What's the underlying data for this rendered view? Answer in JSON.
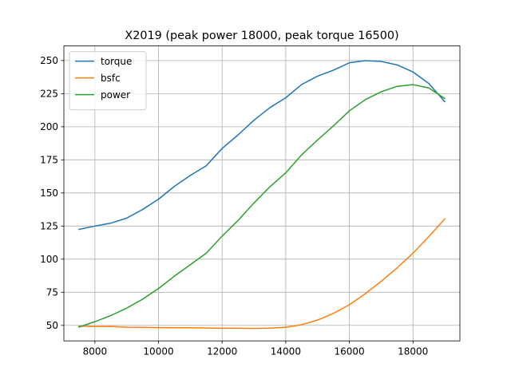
{
  "chart_data": {
    "type": "line",
    "title": "X2019 (peak power 18000, peak torque 16500)",
    "xlabel": "",
    "ylabel": "",
    "xlim": [
      7025,
      19475
    ],
    "ylim": [
      38.3,
      261.0
    ],
    "xticks": [
      8000,
      10000,
      12000,
      14000,
      16000,
      18000
    ],
    "yticks": [
      50,
      75,
      100,
      125,
      150,
      175,
      200,
      225,
      250
    ],
    "grid": true,
    "legend_position": "top-left",
    "series": [
      {
        "name": "torque",
        "color": "#1f77b4",
        "x": [
          7500,
          8000,
          8500,
          9000,
          9500,
          10000,
          10500,
          11000,
          11500,
          12000,
          12500,
          13000,
          13500,
          14000,
          14500,
          15000,
          15500,
          16000,
          16500,
          17000,
          17500,
          18000,
          18500,
          19000
        ],
        "y": [
          122.5,
          125,
          127.2,
          131,
          137.5,
          145.3,
          155,
          163.2,
          170.5,
          183.6,
          193.8,
          204.9,
          214.4,
          221.9,
          231.9,
          238.2,
          242.7,
          248.3,
          249.9,
          249.3,
          246.7,
          241.4,
          232.6,
          218.9
        ]
      },
      {
        "name": "bsfc",
        "color": "#ff7f0e",
        "x": [
          7500,
          8000,
          8500,
          9000,
          9500,
          10000,
          10500,
          11000,
          11500,
          12000,
          12500,
          13000,
          13500,
          14000,
          14500,
          15000,
          15500,
          16000,
          16500,
          17000,
          17500,
          18000,
          18500,
          19000
        ],
        "y": [
          49.4,
          49.1,
          49.2,
          48.6,
          48.5,
          48.3,
          48.2,
          48.2,
          48,
          47.8,
          47.8,
          47.7,
          47.9,
          48.6,
          50.5,
          54,
          59.1,
          65.6,
          73.9,
          83.3,
          93.4,
          104.5,
          117.1,
          130.4
        ]
      },
      {
        "name": "power",
        "color": "#2ca02c",
        "x": [
          7500,
          8000,
          8500,
          9000,
          9500,
          10000,
          10500,
          11000,
          11500,
          12000,
          12500,
          13000,
          13500,
          14000,
          14500,
          15000,
          15500,
          16000,
          16500,
          17000,
          17500,
          18000,
          18500,
          19000
        ],
        "y": [
          48.7,
          52.8,
          57.4,
          63,
          69.8,
          77.8,
          87.2,
          95.8,
          104.5,
          117.4,
          129.2,
          142.4,
          154.6,
          165.2,
          178.8,
          190,
          200.7,
          212,
          220.4,
          226.4,
          230.5,
          231.8,
          229.3,
          221.3
        ]
      }
    ]
  }
}
